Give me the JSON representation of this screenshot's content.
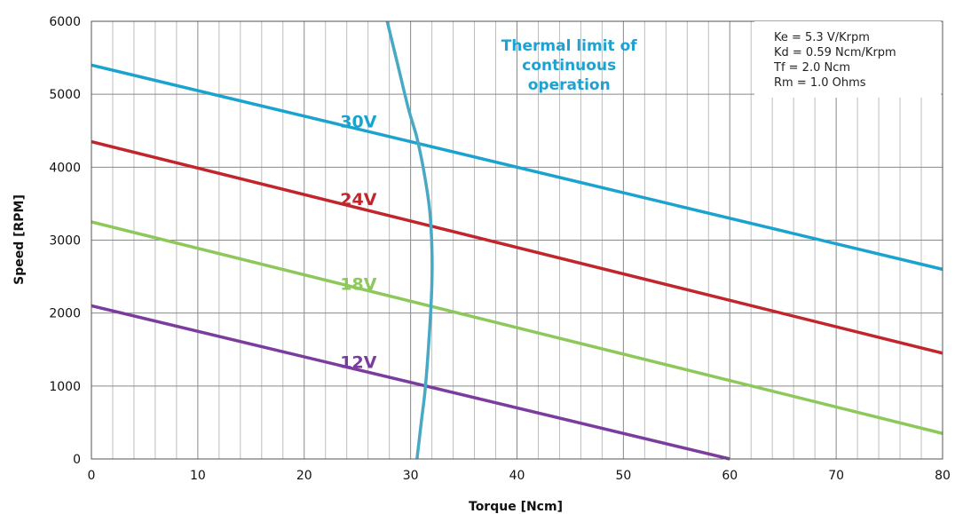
{
  "chart_data": {
    "type": "line",
    "xlabel": "Torque [Ncm]",
    "ylabel": "Speed [RPM]",
    "xlim": [
      0,
      80
    ],
    "ylim": [
      0,
      6000
    ],
    "x_ticks": [
      "0",
      "10",
      "20",
      "30",
      "40",
      "50",
      "60",
      "70",
      "80"
    ],
    "y_ticks": [
      "0",
      "1000",
      "2000",
      "3000",
      "4000",
      "5000",
      "6000"
    ],
    "grid": true,
    "series": [
      {
        "name": "30V",
        "color": "#1ba3cf",
        "x": [
          0,
          80
        ],
        "y": [
          5400,
          2600
        ]
      },
      {
        "name": "24V",
        "color": "#c0262c",
        "x": [
          0,
          80
        ],
        "y": [
          4350,
          1450
        ]
      },
      {
        "name": "18V",
        "color": "#8dc85a",
        "x": [
          0,
          80
        ],
        "y": [
          3250,
          350
        ]
      },
      {
        "name": "12V",
        "color": "#7a3d9e",
        "x": [
          0,
          60
        ],
        "y": [
          2100,
          0
        ]
      }
    ],
    "thermal_limit": {
      "color": "#48a9c5",
      "x": [
        27.8,
        28.8,
        29.8,
        30.6,
        31.3,
        31.8,
        32.0,
        32.0,
        31.8,
        31.4,
        31.0,
        30.6
      ],
      "y": [
        6000,
        5400,
        4800,
        4400,
        3900,
        3400,
        2900,
        2400,
        1800,
        1000,
        500,
        0
      ]
    },
    "annotations": {
      "series_labels": [
        {
          "text": "30V",
          "x": 25.1,
          "y": 4545,
          "color": "#1ba3cf"
        },
        {
          "text": "24V",
          "x": 25.1,
          "y": 3480,
          "color": "#c0262c"
        },
        {
          "text": "18V",
          "x": 25.1,
          "y": 2320,
          "color": "#8dc85a"
        },
        {
          "text": "12V",
          "x": 25.1,
          "y": 1245,
          "color": "#7a3d9e"
        }
      ],
      "thermal_label": {
        "lines": [
          "Thermal limit of",
          "continuous",
          "operation"
        ],
        "x": 44.9,
        "y": 5600
      },
      "parameters": [
        "Ke = 5.3 V/Krpm",
        "Kd = 0.59 Ncm/Krpm",
        "Tf = 2.0 Ncm",
        "Rm = 1.0 Ohms"
      ]
    }
  }
}
